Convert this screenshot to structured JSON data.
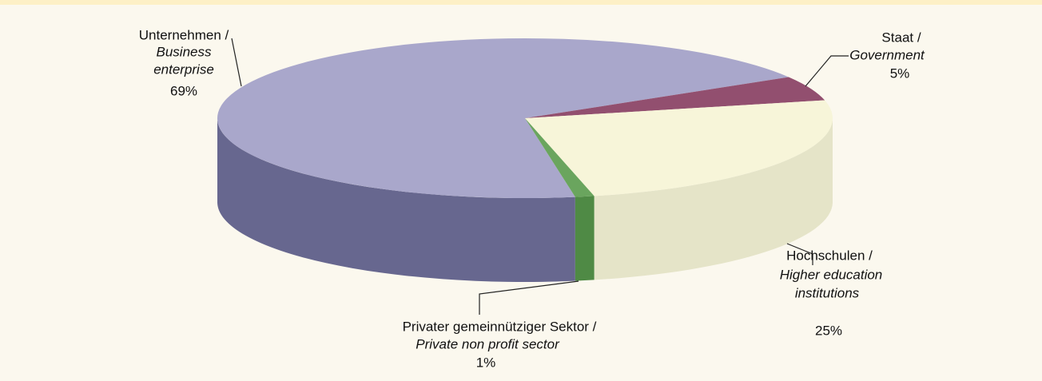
{
  "chart_data": {
    "type": "pie",
    "categories": [
      "Unternehmen /",
      "Staat /",
      "Hochschulen /",
      "Privater gemeinnütziger Sektor /"
    ],
    "translations": [
      [
        "Business",
        "enterprise"
      ],
      [
        "Government"
      ],
      [
        "Higher education",
        "institutions"
      ],
      [
        "Private non profit sector"
      ]
    ],
    "values": [
      69,
      5,
      25,
      1
    ],
    "value_labels": [
      "69%",
      "5%",
      "25%",
      "1%"
    ],
    "colors": [
      "#a9a7cb",
      "#924f6f",
      "#f7f5d9",
      "#6aa55e"
    ],
    "side_colors": [
      "#67678f",
      "#6e3651",
      "#e5e4c8",
      "#4f8a45"
    ]
  }
}
